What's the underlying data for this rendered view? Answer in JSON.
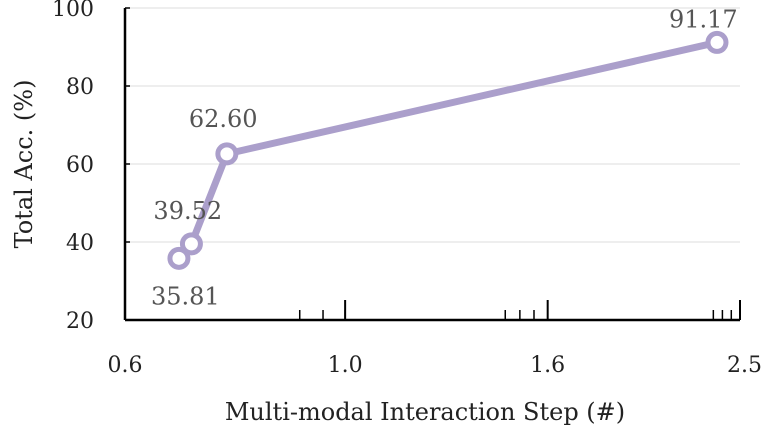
{
  "chart_data": {
    "type": "line",
    "title": "",
    "xlabel": "Multi-modal Interaction Step (#)",
    "ylabel": "Total Acc. (%)",
    "x_scale": "log",
    "xlim": [
      0.6,
      2.5
    ],
    "ylim": [
      20,
      100
    ],
    "x_ticks": [
      {
        "value": 0.6,
        "label": "0.6"
      },
      {
        "value": 1.0,
        "label": "1.0"
      },
      {
        "value": 1.6,
        "label": "1.6"
      },
      {
        "value": 2.5,
        "label": "2.5"
      }
    ],
    "x_minor_ticks": [
      0.9,
      0.95,
      1.0,
      1.45,
      1.5,
      1.55,
      2.35,
      2.4,
      2.45
    ],
    "y_ticks": [
      {
        "value": 20,
        "label": "20"
      },
      {
        "value": 40,
        "label": "40"
      },
      {
        "value": 60,
        "label": "60"
      },
      {
        "value": 80,
        "label": "80"
      },
      {
        "value": 100,
        "label": "100"
      }
    ],
    "grid": "horizontal",
    "series": [
      {
        "color": "#ab9fcb",
        "x": [
          0.68,
          0.7,
          0.76,
          2.37
        ],
        "y": [
          35.81,
          39.52,
          62.6,
          91.17
        ],
        "labels": [
          "35.81",
          "39.52",
          "62.60",
          "91.17"
        ]
      }
    ]
  }
}
